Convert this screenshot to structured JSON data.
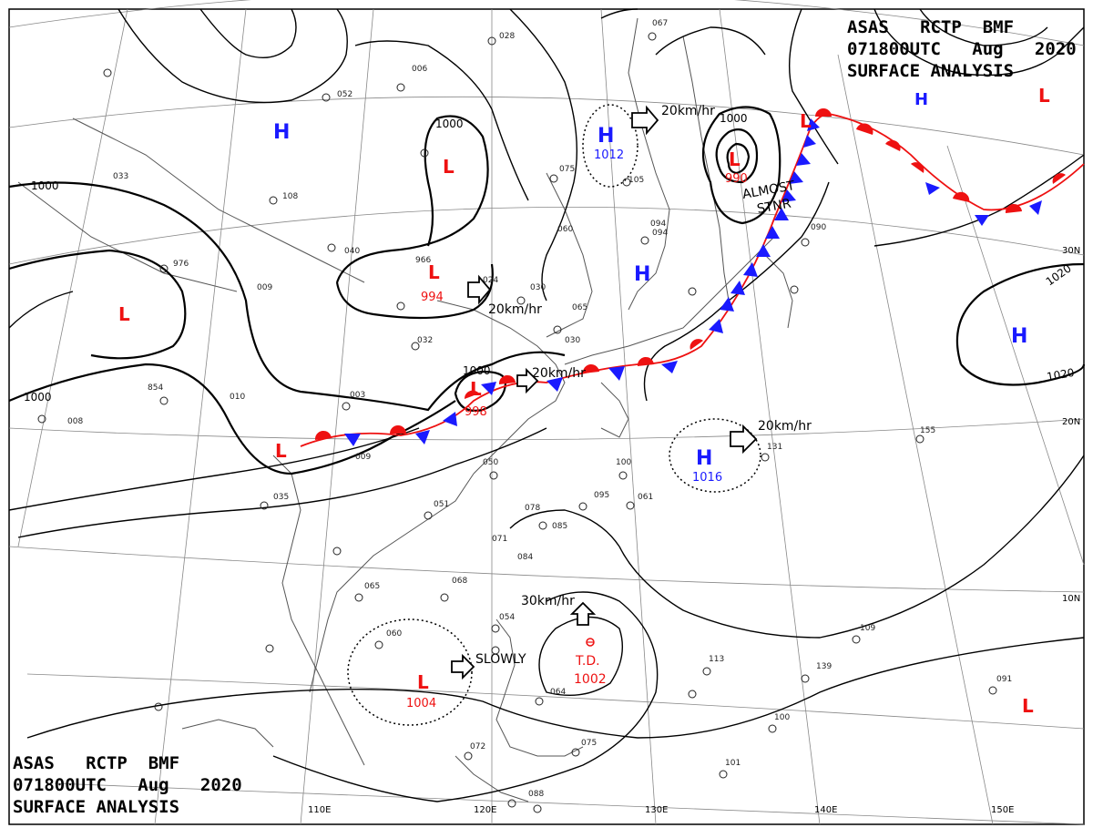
{
  "header": {
    "line1": "ASAS   RCTP  BMF",
    "line2": "071800UTC   Aug   2020",
    "line3": "SURFACE ANALYSIS"
  },
  "colors": {
    "high": "#1a1aff",
    "low": "#ee1111",
    "warm_front": "#ee1111",
    "cold_front": "#1a1aff",
    "isobar": "#000000",
    "grid": "#888888",
    "coast": "#555555"
  },
  "longitude_labels": [
    "110E",
    "120E",
    "130E",
    "140E",
    "150E"
  ],
  "latitude_labels": [
    "30N",
    "20N",
    "10N"
  ],
  "isobar_labels": [
    "1000",
    "1000",
    "1000",
    "1000",
    "1020",
    "1020"
  ],
  "pressure_centers": [
    {
      "type": "H",
      "value": ""
    },
    {
      "type": "H",
      "value": "1012"
    },
    {
      "type": "H",
      "value": ""
    },
    {
      "type": "H",
      "value": "1016"
    },
    {
      "type": "H",
      "value": ""
    },
    {
      "type": "H",
      "value": ""
    },
    {
      "type": "L",
      "value": ""
    },
    {
      "type": "L",
      "value": "994"
    },
    {
      "type": "L",
      "value": "998"
    },
    {
      "type": "L",
      "value": "990"
    },
    {
      "type": "L",
      "value": "1004"
    },
    {
      "type": "L",
      "value": ""
    },
    {
      "type": "L",
      "value": ""
    },
    {
      "type": "L",
      "value": ""
    },
    {
      "type": "L",
      "value": ""
    },
    {
      "type": "TD",
      "value": "1002",
      "label": "T.D."
    }
  ],
  "motion_labels": [
    "20km/hr",
    "20km/hr",
    "20km/hr",
    "20km/hr",
    "30km/hr",
    "SLOWLY",
    "ALMOST",
    "STNR"
  ],
  "station_values": [
    "006",
    "052",
    "028",
    "067",
    "008",
    "108",
    "976",
    "854",
    "010",
    "040",
    "966",
    "024",
    "030",
    "065",
    "030",
    "094",
    "075",
    "105",
    "060",
    "090",
    "131",
    "155",
    "100",
    "095",
    "051",
    "078",
    "085",
    "050",
    "035",
    "061",
    "068",
    "065",
    "060",
    "054",
    "064",
    "075",
    "072",
    "088",
    "113",
    "100",
    "139",
    "091",
    "109",
    "101",
    "094",
    "033",
    "003",
    "009",
    "009",
    "032",
    "084",
    "071"
  ]
}
